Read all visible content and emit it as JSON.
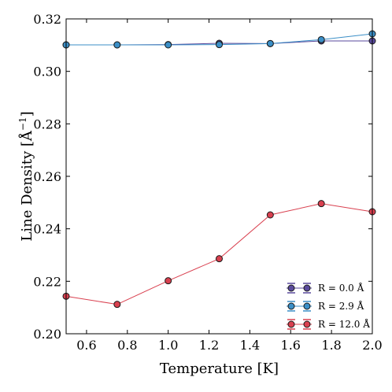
{
  "chart_data": {
    "type": "line",
    "xlabel": "Temperature [K]",
    "ylabel": "Line Density [Å",
    "ylabel_superscript": "−1",
    "ylabel_close": "]",
    "xlim": [
      0.5,
      2.0
    ],
    "ylim": [
      0.2,
      0.32
    ],
    "xticks": [
      0.6,
      0.8,
      1.0,
      1.2,
      1.4,
      1.6,
      1.8,
      2.0
    ],
    "xtick_labels": [
      "0.6",
      "0.8",
      "1.0",
      "1.2",
      "1.4",
      "1.6",
      "1.8",
      "2.0"
    ],
    "yticks": [
      0.2,
      0.22,
      0.24,
      0.26,
      0.28,
      0.3,
      0.32
    ],
    "ytick_labels": [
      "0.20",
      "0.22",
      "0.24",
      "0.26",
      "0.28",
      "0.30",
      "0.32"
    ],
    "grid": false,
    "legend_position": "bottom-right",
    "x": [
      0.5,
      0.75,
      1.0,
      1.25,
      1.5,
      1.75,
      2.0
    ],
    "series": [
      {
        "name": "R = 0.0 Å",
        "color": "#5a4a9c",
        "values": [
          0.3101,
          0.3101,
          0.3102,
          0.3107,
          0.3106,
          0.3116,
          0.3116
        ]
      },
      {
        "name": "R = 2.9 Å",
        "color": "#3b8fc7",
        "values": [
          0.3101,
          0.3101,
          0.3101,
          0.3102,
          0.3106,
          0.3121,
          0.3143
        ]
      },
      {
        "name": "R = 12.0 Å",
        "color": "#d9404f",
        "values": [
          0.2143,
          0.2112,
          0.2202,
          0.2286,
          0.2453,
          0.2496,
          0.2465
        ]
      }
    ]
  }
}
